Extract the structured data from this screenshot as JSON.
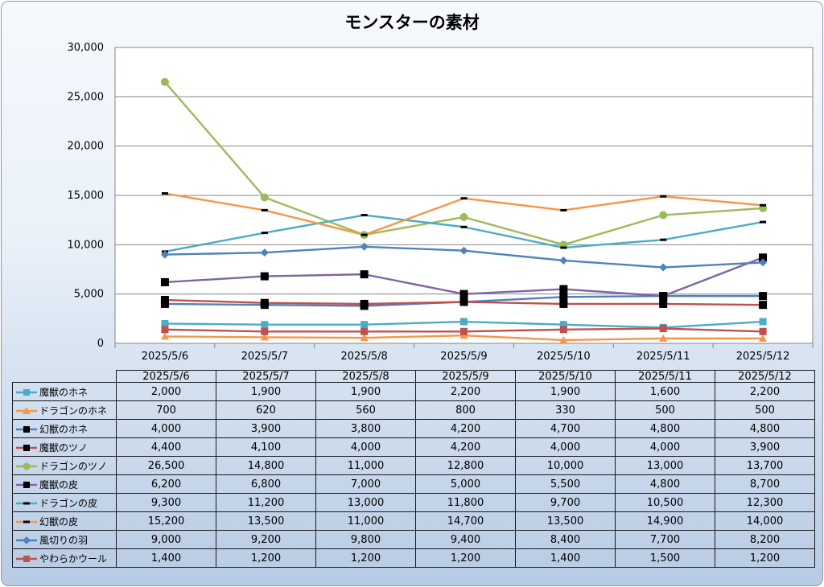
{
  "chart_data": {
    "type": "line",
    "title": "モンスターの素材",
    "categories": [
      "2025/5/6",
      "2025/5/7",
      "2025/5/8",
      "2025/5/9",
      "2025/5/10",
      "2025/5/11",
      "2025/5/12"
    ],
    "y_ticks": [
      "30,000",
      "25,000",
      "20,000",
      "15,000",
      "10,000",
      "5,000",
      "0"
    ],
    "ylim": [
      0,
      30000
    ],
    "grid": true,
    "legend_placement": "data table below chart",
    "series": [
      {
        "name": "魔獣のホネ",
        "color": "#4bacc6",
        "marker": "square",
        "values": [
          2000,
          1900,
          1900,
          2200,
          1900,
          1600,
          2200
        ],
        "labels": [
          "2,000",
          "1,900",
          "1,900",
          "2,200",
          "1,900",
          "1,600",
          "2,200"
        ]
      },
      {
        "name": "ドラゴンのホネ",
        "color": "#f79646",
        "marker": "triangle",
        "values": [
          700,
          620,
          560,
          800,
          330,
          500,
          500
        ],
        "labels": [
          "700",
          "620",
          "560",
          "800",
          "330",
          "500",
          "500"
        ]
      },
      {
        "name": "幻獣のホネ",
        "color": "#4f81bd",
        "marker": "bigsquare",
        "values": [
          4000,
          3900,
          3800,
          4200,
          4700,
          4800,
          4800
        ],
        "labels": [
          "4,000",
          "3,900",
          "3,800",
          "4,200",
          "4,700",
          "4,800",
          "4,800"
        ]
      },
      {
        "name": "魔獣のツノ",
        "color": "#c0504d",
        "marker": "bigsquare",
        "values": [
          4400,
          4100,
          4000,
          4200,
          4000,
          4000,
          3900
        ],
        "labels": [
          "4,400",
          "4,100",
          "4,000",
          "4,200",
          "4,000",
          "4,000",
          "3,900"
        ]
      },
      {
        "name": "ドラゴンのツノ",
        "color": "#9bbb59",
        "marker": "circle",
        "values": [
          26500,
          14800,
          11000,
          12800,
          10000,
          13000,
          13700
        ],
        "labels": [
          "26,500",
          "14,800",
          "11,000",
          "12,800",
          "10,000",
          "13,000",
          "13,700"
        ]
      },
      {
        "name": "魔獣の皮",
        "color": "#8064a2",
        "marker": "bigsquare",
        "values": [
          6200,
          6800,
          7000,
          5000,
          5500,
          4800,
          8700
        ],
        "labels": [
          "6,200",
          "6,800",
          "7,000",
          "5,000",
          "5,500",
          "4,800",
          "8,700"
        ]
      },
      {
        "name": "ドラゴンの皮",
        "color": "#4bacc6",
        "marker": "dash",
        "values": [
          9300,
          11200,
          13000,
          11800,
          9700,
          10500,
          12300
        ],
        "labels": [
          "9,300",
          "11,200",
          "13,000",
          "11,800",
          "9,700",
          "10,500",
          "12,300"
        ]
      },
      {
        "name": "幻獣の皮",
        "color": "#f79646",
        "marker": "dash",
        "values": [
          15200,
          13500,
          11000,
          14700,
          13500,
          14900,
          14000
        ],
        "labels": [
          "15,200",
          "13,500",
          "11,000",
          "14,700",
          "13,500",
          "14,900",
          "14,000"
        ]
      },
      {
        "name": "風切りの羽",
        "color": "#4f81bd",
        "marker": "diamond",
        "values": [
          9000,
          9200,
          9800,
          9400,
          8400,
          7700,
          8200
        ],
        "labels": [
          "9,000",
          "9,200",
          "9,800",
          "9,400",
          "8,400",
          "7,700",
          "8,200"
        ]
      },
      {
        "name": "やわらかウール",
        "color": "#c0504d",
        "marker": "square",
        "values": [
          1400,
          1200,
          1200,
          1200,
          1400,
          1500,
          1200
        ],
        "labels": [
          "1,400",
          "1,200",
          "1,200",
          "1,200",
          "1,400",
          "1,500",
          "1,200"
        ]
      }
    ]
  }
}
